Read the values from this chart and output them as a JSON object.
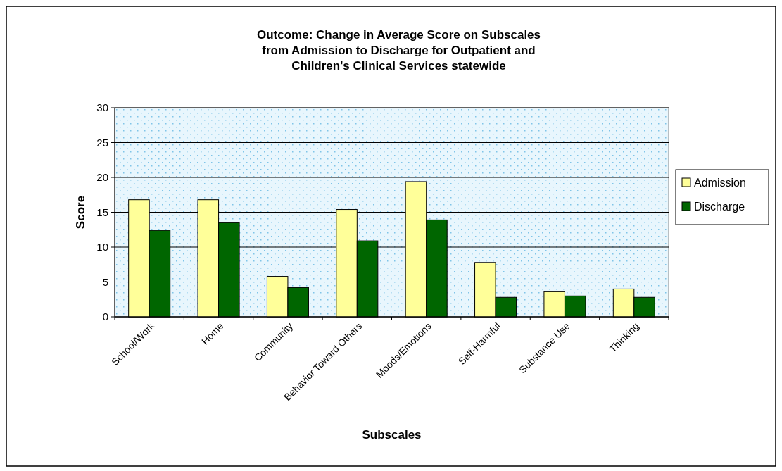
{
  "chart_data": {
    "type": "bar",
    "title": "Outcome: Change in Average Score on Subscales\nfrom Admission to Discharge for Outpatient and\nChildren's Clinical Services statewide",
    "xlabel": "Subscales",
    "ylabel": "Score",
    "categories": [
      "School/Work",
      "Home",
      "Community",
      "Behavior Toward Others",
      "Moods/Emotions",
      "Self-Harmful",
      "Substance Use",
      "Thinking"
    ],
    "series": [
      {
        "name": "Admission",
        "color": "#ffff99",
        "values": [
          16.8,
          16.8,
          5.8,
          15.4,
          19.4,
          7.8,
          3.6,
          4.0
        ]
      },
      {
        "name": "Discharge",
        "color": "#006600",
        "values": [
          12.4,
          13.5,
          4.2,
          10.9,
          13.9,
          2.8,
          3.0,
          2.8
        ]
      }
    ],
    "ylim": [
      0,
      30
    ],
    "yticks": [
      0,
      5,
      10,
      15,
      20,
      25,
      30
    ],
    "grid": "y",
    "legend": "right"
  }
}
